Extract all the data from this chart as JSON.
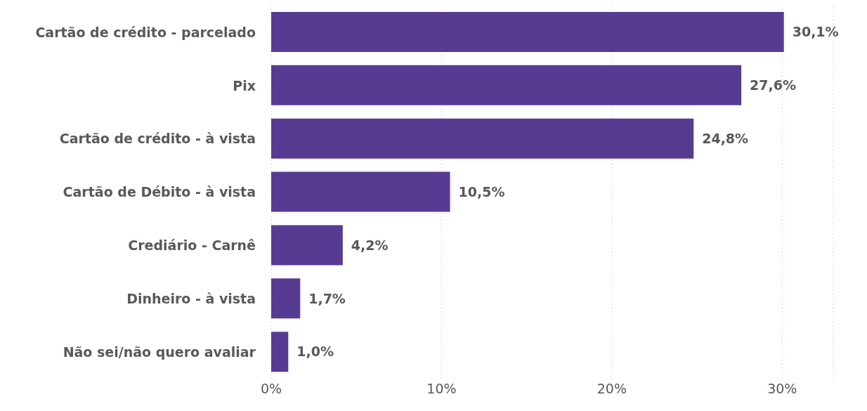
{
  "chart_data": {
    "type": "bar",
    "orientation": "horizontal",
    "categories": [
      "Cartão de crédito - parcelado",
      "Pix",
      "Cartão de crédito - à vista",
      "Cartão de Débito - à vista",
      "Crediário - Carnê",
      "Dinheiro - à vista",
      "Não sei/não quero avaliar"
    ],
    "values": [
      30.1,
      27.6,
      24.8,
      10.5,
      4.2,
      1.7,
      1.0
    ],
    "value_labels": [
      "30,1%",
      "27,6%",
      "24,8%",
      "10,5%",
      "4,2%",
      "1,7%",
      "1,0%"
    ],
    "color": "#573b92",
    "xlim": [
      0,
      33
    ],
    "xticks": [
      {
        "value": 0,
        "label": "0%"
      },
      {
        "value": 10,
        "label": "10%"
      },
      {
        "value": 20,
        "label": "20%"
      },
      {
        "value": 30,
        "label": "30%"
      }
    ],
    "grid": "x"
  }
}
